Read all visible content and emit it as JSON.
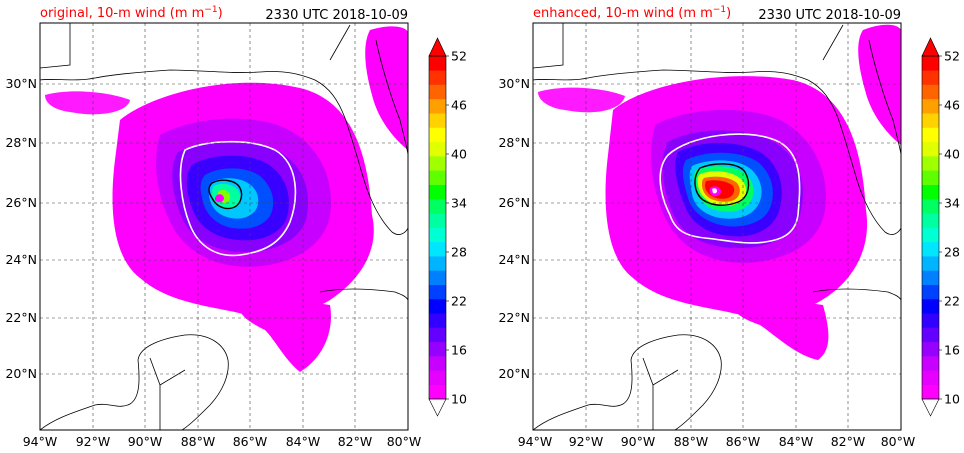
{
  "panels": [
    {
      "title_left": "original, 10-m wind (m m",
      "title_left_sup": "−1",
      "title_left_end": ")",
      "title_right": "2330 UTC 2018-10-09",
      "title_color": "#ff0000"
    },
    {
      "title_left": "enhanced, 10-m wind (m m",
      "title_left_sup": "−1",
      "title_left_end": ")",
      "title_right": "2330 UTC 2018-10-09",
      "title_color": "#ff0000"
    }
  ],
  "lon_ticks": [
    "94°W",
    "92°W",
    "90°W",
    "88°W",
    "86°W",
    "84°W",
    "82°W",
    "80°W"
  ],
  "lat_ticks": [
    "30°N",
    "28°N",
    "26°N",
    "24°N",
    "22°N",
    "20°N"
  ],
  "colorbar": {
    "ticks": [
      "52",
      "46",
      "40",
      "34",
      "28",
      "22",
      "16",
      "10"
    ],
    "min": 10,
    "max": 52,
    "step": 2,
    "colors": [
      "#ff00ff",
      "#e600ff",
      "#c800ff",
      "#9600ff",
      "#6400ff",
      "#3200ff",
      "#0000ff",
      "#0040ff",
      "#0080ff",
      "#00b4ff",
      "#00e6ff",
      "#00ffd2",
      "#00ffa0",
      "#00ff60",
      "#00ff00",
      "#60ff00",
      "#a0ff00",
      "#e0ff00",
      "#ffff00",
      "#ffd200",
      "#ffa000",
      "#ff6400",
      "#ff3200",
      "#ff0000"
    ]
  }
}
